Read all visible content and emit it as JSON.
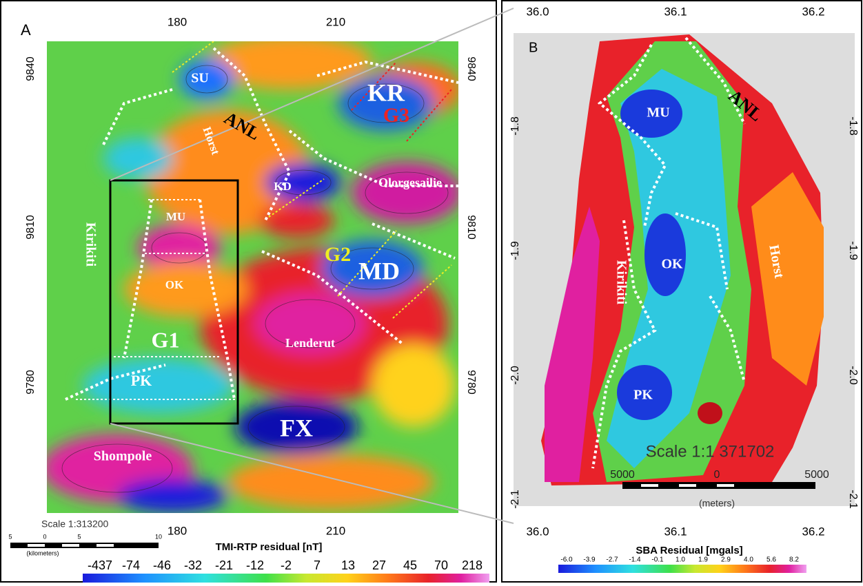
{
  "panel_a": {
    "label": "A",
    "top_ticks": [
      "180",
      "210"
    ],
    "bottom_ticks": [
      "180",
      "210"
    ],
    "left_ticks": [
      "9840",
      "9810",
      "9780"
    ],
    "right_ticks": [
      "9840",
      "9810",
      "9780"
    ],
    "features": [
      "SU",
      "KR",
      "G3",
      "ANL",
      "Horst",
      "KD",
      "Olorgesailie",
      "Kirikiti",
      "MU",
      "OK",
      "G2",
      "MD",
      "G1",
      "Lenderut",
      "PK",
      "FX",
      "Shompole"
    ],
    "scale": "Scale 1:313200",
    "scale_bar": [
      "5",
      "0",
      "5",
      "10"
    ],
    "scale_unit": "(kilometers)",
    "colorbar_title": "TMI-RTP residual [nT]",
    "colorbar_labels": [
      "-437",
      "-74",
      "-46",
      "-32",
      "-21",
      "-12",
      "-2",
      "7",
      "13",
      "27",
      "45",
      "70",
      "218"
    ]
  },
  "panel_b": {
    "label": "B",
    "top_ticks": [
      "36.0",
      "36.1",
      "36.2"
    ],
    "bottom_ticks": [
      "36.0",
      "36.1",
      "36.2"
    ],
    "left_ticks": [
      "-1.8",
      "-1.9",
      "-2.0",
      "-2.1"
    ],
    "right_ticks": [
      "-1.8",
      "-1.9",
      "-2.0",
      "-2.1"
    ],
    "features": [
      "MU",
      "ANL",
      "OK",
      "Kirikiti",
      "Horst",
      "PK"
    ],
    "scale": "Scale 1:1 371702",
    "scale_bar": [
      "5000",
      "0",
      "5000"
    ],
    "scale_unit": "(meters)",
    "colorbar_title": "SBA Residual [mgals]",
    "colorbar_labels": [
      "-6.0",
      "-3.9",
      "-2.7",
      "-1.4",
      "-0.1",
      "1.0",
      "1.9",
      "2.9",
      "4.0",
      "5.6",
      "8.2"
    ]
  }
}
